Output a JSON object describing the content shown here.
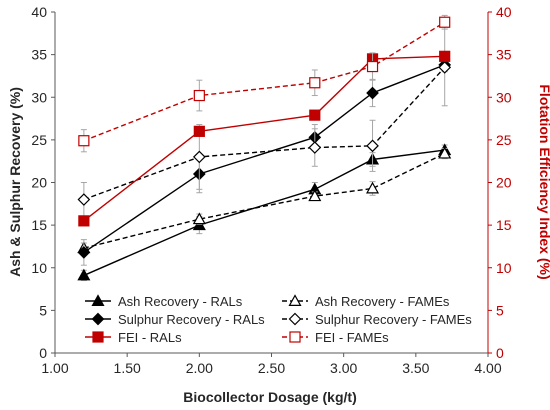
{
  "chart_data": {
    "type": "line",
    "xlabel": "Biocollector Dosage (kg/t)",
    "ylabel": "Ash & Sulphur Recovery (%)",
    "y2label": "Flotation Efficiency Index (%)",
    "xlim": [
      1.0,
      4.0
    ],
    "ylim": [
      0,
      40
    ],
    "y2lim": [
      0,
      40
    ],
    "x_ticks": [
      "1.00",
      "1.50",
      "2.00",
      "2.50",
      "3.00",
      "3.50",
      "4.00"
    ],
    "y_ticks": [
      "0",
      "5",
      "10",
      "15",
      "20",
      "25",
      "30",
      "35",
      "40"
    ],
    "y2_ticks": [
      "0",
      "5",
      "10",
      "15",
      "20",
      "25",
      "30",
      "35",
      "40"
    ],
    "grid": false,
    "legend_placement": "bottom",
    "series": [
      {
        "name": "Ash Recovery - RALs",
        "axis": "left",
        "color": "#000000",
        "dash": "solid",
        "marker": "triangle",
        "filled": true,
        "x": [
          1.2,
          2.0,
          2.8,
          3.2,
          3.7
        ],
        "values": [
          9.1,
          15.0,
          19.2,
          22.7,
          23.8
        ],
        "err": [
          0.6,
          1.0,
          0.8,
          0.8,
          0.6
        ]
      },
      {
        "name": "Ash Recovery - FAMEs",
        "axis": "left",
        "color": "#000000",
        "dash": "dashed",
        "marker": "triangle",
        "filled": false,
        "x": [
          1.2,
          2.0,
          2.8,
          3.2,
          3.7
        ],
        "values": [
          12.3,
          15.7,
          18.4,
          19.3,
          23.4
        ],
        "err": [
          0.6,
          0.6,
          0.5,
          0.8,
          0.6
        ]
      },
      {
        "name": "Sulphur Recovery - RALs",
        "axis": "left",
        "color": "#000000",
        "dash": "solid",
        "marker": "diamond",
        "filled": true,
        "x": [
          1.2,
          2.0,
          2.8,
          3.2,
          3.7
        ],
        "values": [
          11.8,
          21.0,
          25.3,
          30.5,
          33.8
        ],
        "err": [
          1.5,
          2.2,
          1.5,
          1.6,
          0.8
        ]
      },
      {
        "name": "Sulphur Recovery - FAMEs",
        "axis": "left",
        "color": "#000000",
        "dash": "dashed",
        "marker": "diamond",
        "filled": false,
        "x": [
          1.2,
          2.0,
          2.8,
          3.2,
          3.7
        ],
        "values": [
          18.0,
          23.0,
          24.1,
          24.3,
          33.5
        ],
        "err": [
          2.0,
          3.8,
          2.2,
          3.0,
          4.5
        ]
      },
      {
        "name": "FEI - RALs",
        "axis": "right",
        "color": "#c00000",
        "dash": "solid",
        "marker": "square",
        "filled": true,
        "x": [
          1.2,
          2.0,
          2.8,
          3.2,
          3.7
        ],
        "values": [
          15.5,
          26.0,
          27.9,
          34.5,
          34.8
        ],
        "err": [
          0,
          0,
          0,
          0,
          0
        ]
      },
      {
        "name": "FEI - FAMEs",
        "axis": "right",
        "color": "#c00000",
        "dash": "dashed",
        "marker": "square",
        "filled": false,
        "x": [
          1.2,
          2.0,
          2.8,
          3.2,
          3.7
        ],
        "values": [
          24.9,
          30.2,
          31.7,
          33.6,
          38.8
        ],
        "err": [
          1.3,
          1.8,
          1.5,
          1.6,
          0.8
        ]
      }
    ],
    "legend": [
      [
        "Ash Recovery - RALs",
        "Ash Recovery - FAMEs"
      ],
      [
        "Sulphur Recovery - RALs",
        "Sulphur Recovery - FAMEs"
      ],
      [
        "FEI - RALs",
        "FEI - FAMEs"
      ]
    ]
  }
}
